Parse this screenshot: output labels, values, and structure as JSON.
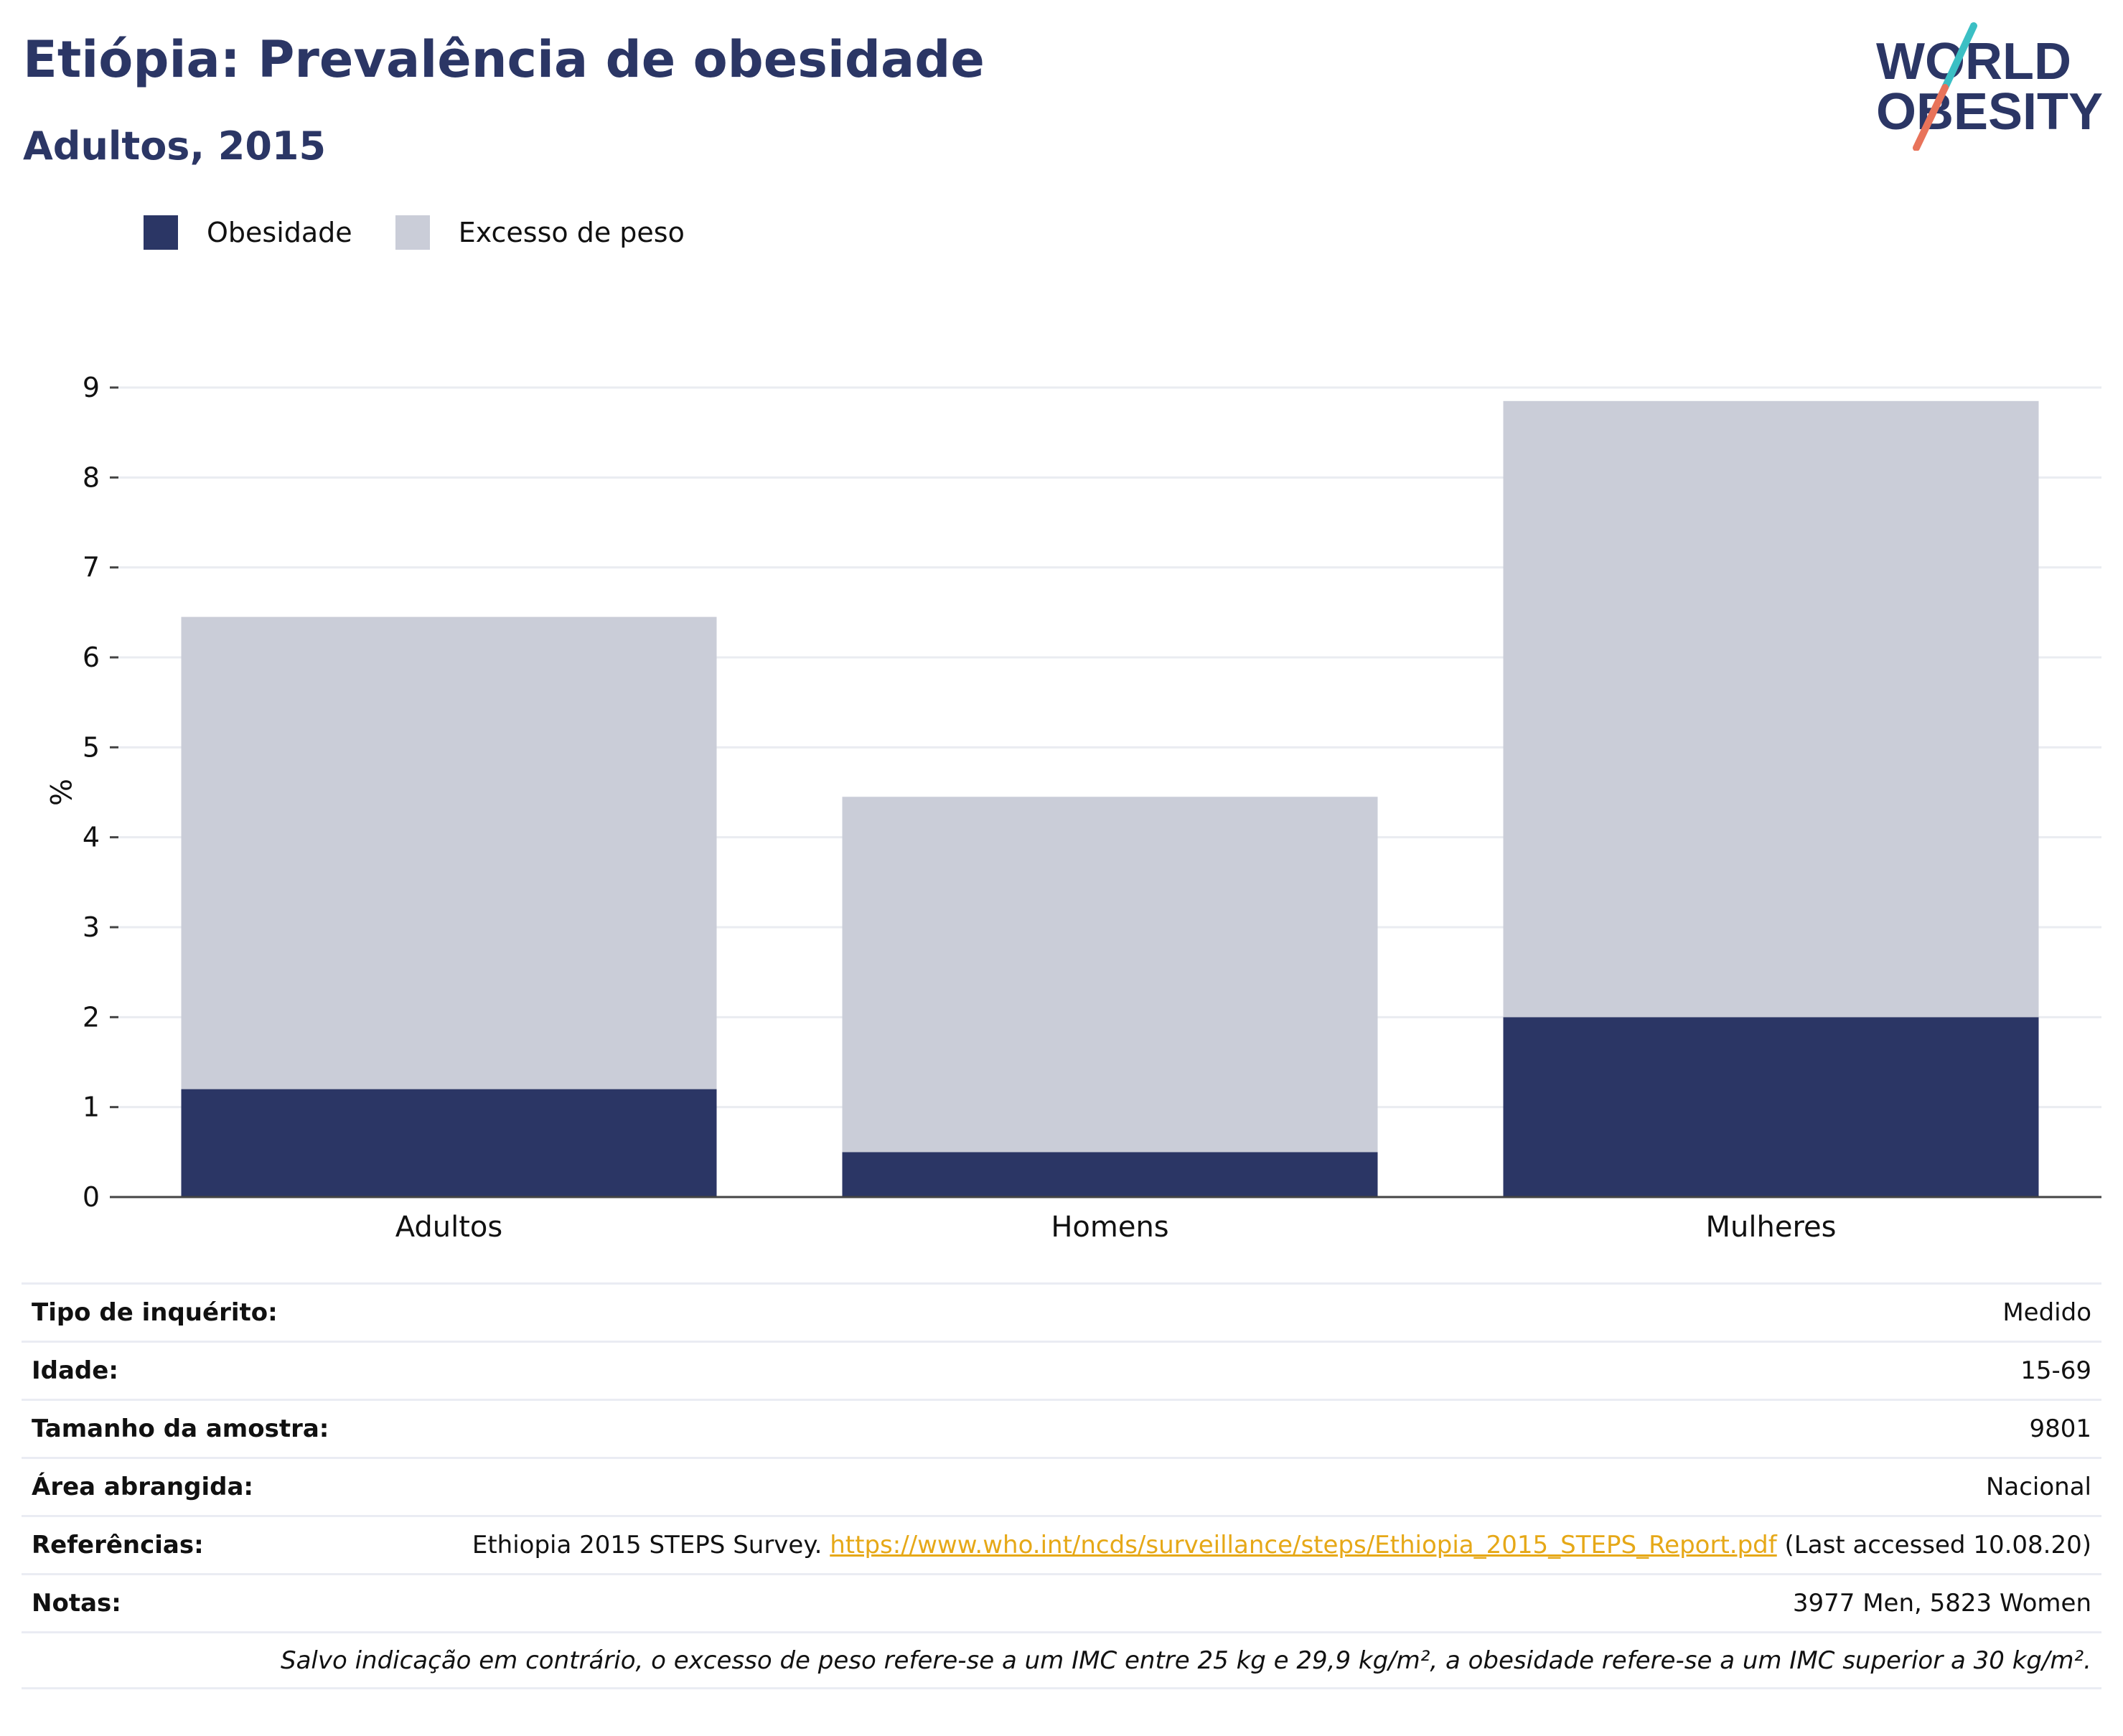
{
  "header": {
    "title": "Etiópia: Prevalência de obesidade",
    "subtitle": "Adultos, 2015",
    "logo_line1": "WORLD",
    "logo_line2": "OBESITY"
  },
  "colors": {
    "obesity": "#2b3665",
    "overweight": "#cacdd8",
    "title": "#2b3665",
    "logo_teal": "#3bbfc4",
    "logo_coral": "#e8735a",
    "link": "#e6a817"
  },
  "legend": [
    {
      "label": "Obesidade",
      "color": "#2b3665"
    },
    {
      "label": "Excesso de peso",
      "color": "#cacdd8"
    }
  ],
  "chart_data": {
    "type": "bar",
    "stacked": true,
    "categories": [
      "Adultos",
      "Homens",
      "Mulheres"
    ],
    "series": [
      {
        "name": "Obesidade",
        "values": [
          1.2,
          0.5,
          2.0
        ]
      },
      {
        "name": "Excesso de peso",
        "values": [
          5.25,
          3.95,
          6.85
        ]
      }
    ],
    "ylabel": "%",
    "ylim": [
      0,
      9
    ],
    "yticks": [
      0,
      1,
      2,
      3,
      4,
      5,
      6,
      7,
      8,
      9
    ],
    "grid": true,
    "legend_position": "top-left"
  },
  "info": {
    "rows": [
      {
        "label": "Tipo de inquérito:",
        "value": "Medido"
      },
      {
        "label": "Idade:",
        "value": "15-69"
      },
      {
        "label": "Tamanho da amostra:",
        "value": "9801"
      },
      {
        "label": "Área abrangida:",
        "value": "Nacional"
      }
    ],
    "references_label": "Referências:",
    "references_text": "Ethiopia 2015 STEPS Survey.",
    "references_link": "https://www.who.int/ncds/surveillance/steps/Ethiopia_2015_STEPS_Report.pdf",
    "references_suffix": "(Last accessed 10.08.20)",
    "notes_label": "Notas:",
    "notes_value": "3977 Men, 5823 Women",
    "footnote": "Salvo indicação em contrário, o excesso de peso refere-se a um IMC entre 25 kg e 29,9 kg/m², a obesidade refere-se a um IMC superior a 30 kg/m²."
  }
}
